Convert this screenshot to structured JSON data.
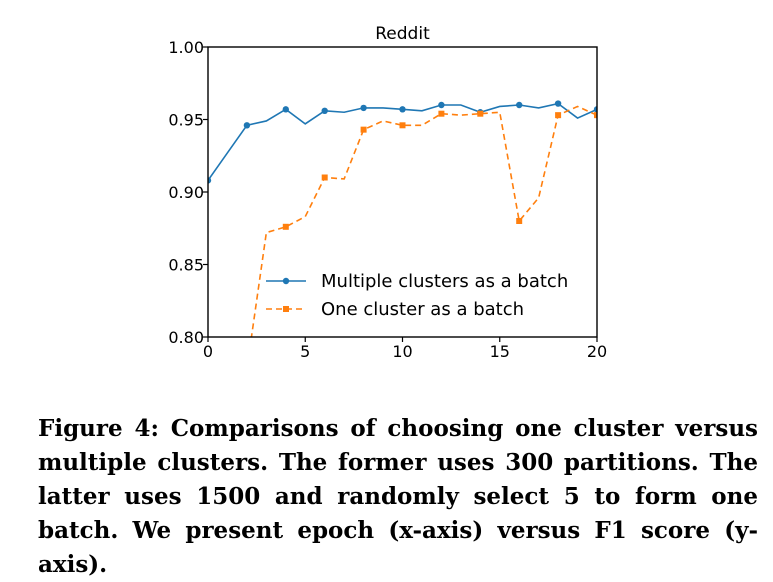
{
  "chart_data": {
    "type": "line",
    "title": "Reddit",
    "xlabel": "",
    "ylabel": "",
    "xlim": [
      0,
      20
    ],
    "ylim": [
      0.8,
      1.0
    ],
    "xticks": [
      0,
      5,
      10,
      15,
      20
    ],
    "xtick_labels": [
      "0",
      "5",
      "10",
      "15",
      "20"
    ],
    "yticks": [
      0.8,
      0.85,
      0.9,
      0.95,
      1.0
    ],
    "ytick_labels": [
      "0.80",
      "0.85",
      "0.90",
      "0.95",
      "1.00"
    ],
    "grid": false,
    "legend_position": "lower-center",
    "series": [
      {
        "name": "Multiple clusters as a batch",
        "color": "#1f77b4",
        "linestyle": "solid",
        "marker": "circle",
        "x": [
          0,
          1,
          2,
          3,
          4,
          5,
          6,
          7,
          8,
          9,
          10,
          11,
          12,
          13,
          14,
          15,
          16,
          17,
          18,
          19,
          20
        ],
        "y": [
          0.908,
          0.927,
          0.946,
          0.949,
          0.957,
          0.947,
          0.956,
          0.955,
          0.958,
          0.958,
          0.957,
          0.956,
          0.96,
          0.96,
          0.955,
          0.959,
          0.96,
          0.958,
          0.961,
          0.951,
          0.957
        ]
      },
      {
        "name": "One cluster as a batch",
        "color": "#ff7f0e",
        "linestyle": "dashed",
        "marker": "square",
        "x": [
          2,
          3,
          4,
          5,
          6,
          7,
          8,
          9,
          10,
          11,
          12,
          13,
          14,
          15,
          16,
          17,
          18,
          19,
          20
        ],
        "y": [
          0.778,
          0.872,
          0.876,
          0.883,
          0.91,
          0.909,
          0.943,
          0.949,
          0.946,
          0.946,
          0.954,
          0.953,
          0.954,
          0.955,
          0.88,
          0.896,
          0.953,
          0.959,
          0.953
        ]
      }
    ]
  },
  "caption": "Figure 4: Comparisons of choosing one cluster versus multiple clusters. The former uses 300 partitions. The latter uses 1500 and randomly select 5 to form one batch. We present epoch (x-axis) versus F1 score (y-axis)."
}
